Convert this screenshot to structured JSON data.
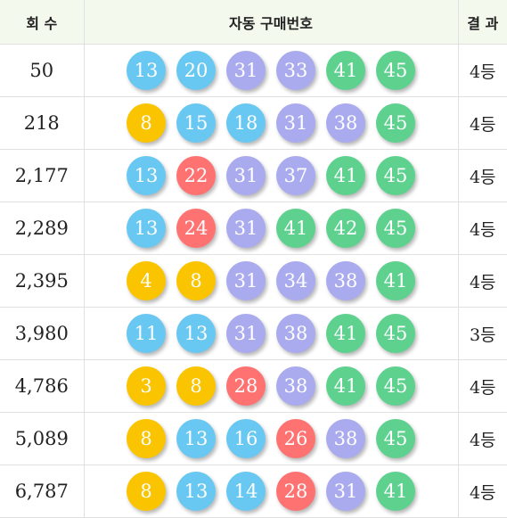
{
  "header": {
    "round": "회 수",
    "numbers": "자동 구매번호",
    "result": "결 과"
  },
  "colors": {
    "yellow": "#fbc400",
    "blue": "#69c8f2",
    "red": "#ff7272",
    "purple": "#aaaaee",
    "green": "#5fd18f",
    "header_bg": "#f4f9ee"
  },
  "rows": [
    {
      "round": "50",
      "numbers": [
        "13",
        "20",
        "31",
        "33",
        "41",
        "45"
      ],
      "colors": [
        "blue",
        "blue",
        "purple",
        "purple",
        "green",
        "green"
      ],
      "result": "4등"
    },
    {
      "round": "218",
      "numbers": [
        "8",
        "15",
        "18",
        "31",
        "38",
        "45"
      ],
      "colors": [
        "yellow",
        "blue",
        "blue",
        "purple",
        "purple",
        "green"
      ],
      "result": "4등"
    },
    {
      "round": "2,177",
      "numbers": [
        "13",
        "22",
        "31",
        "37",
        "41",
        "45"
      ],
      "colors": [
        "blue",
        "red",
        "purple",
        "purple",
        "green",
        "green"
      ],
      "result": "4등"
    },
    {
      "round": "2,289",
      "numbers": [
        "13",
        "24",
        "31",
        "41",
        "42",
        "45"
      ],
      "colors": [
        "blue",
        "red",
        "purple",
        "green",
        "green",
        "green"
      ],
      "result": "4등"
    },
    {
      "round": "2,395",
      "numbers": [
        "4",
        "8",
        "31",
        "34",
        "38",
        "41"
      ],
      "colors": [
        "yellow",
        "yellow",
        "purple",
        "purple",
        "purple",
        "green"
      ],
      "result": "4등"
    },
    {
      "round": "3,980",
      "numbers": [
        "11",
        "13",
        "31",
        "38",
        "41",
        "45"
      ],
      "colors": [
        "blue",
        "blue",
        "purple",
        "purple",
        "green",
        "green"
      ],
      "result": "3등"
    },
    {
      "round": "4,786",
      "numbers": [
        "3",
        "8",
        "28",
        "38",
        "41",
        "45"
      ],
      "colors": [
        "yellow",
        "yellow",
        "red",
        "purple",
        "green",
        "green"
      ],
      "result": "4등"
    },
    {
      "round": "5,089",
      "numbers": [
        "8",
        "13",
        "16",
        "26",
        "38",
        "45"
      ],
      "colors": [
        "yellow",
        "blue",
        "blue",
        "red",
        "purple",
        "green"
      ],
      "result": "4등"
    },
    {
      "round": "6,787",
      "numbers": [
        "8",
        "13",
        "14",
        "28",
        "31",
        "41"
      ],
      "colors": [
        "yellow",
        "blue",
        "blue",
        "red",
        "purple",
        "green"
      ],
      "result": "4등"
    }
  ]
}
